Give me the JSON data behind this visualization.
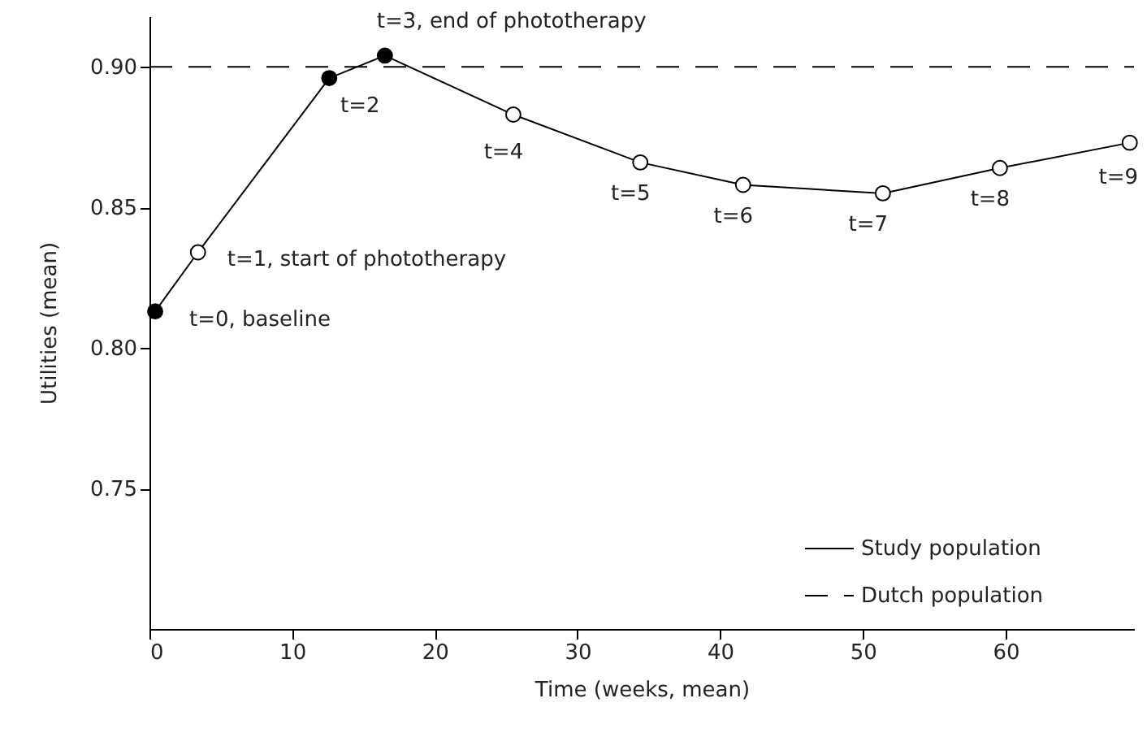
{
  "chart_data": {
    "type": "line",
    "xlabel": "Time (weeks, mean)",
    "ylabel": "Utilities (mean)",
    "xlim": [
      0,
      69
    ],
    "xticks": [
      0,
      10,
      20,
      30,
      40,
      50,
      60
    ],
    "ylim": [
      0.7,
      0.918
    ],
    "yticks": [
      {
        "value": 0.75,
        "label": "0.75"
      },
      {
        "value": 0.8,
        "label": "0.80"
      },
      {
        "value": 0.85,
        "label": "0.85"
      },
      {
        "value": 0.9,
        "label": "0.90"
      }
    ],
    "grid": false,
    "legend": "bottom right",
    "series": [
      {
        "name": "Study population",
        "color": "#000000",
        "marker": "circle",
        "line_style": "solid",
        "x": [
          0.4,
          3.4,
          12.6,
          16.5,
          25.5,
          34.4,
          41.6,
          51.4,
          59.6,
          68.7
        ],
        "values": [
          0.813,
          0.834,
          0.896,
          0.904,
          0.883,
          0.866,
          0.858,
          0.855,
          0.864,
          0.873
        ],
        "colors": [
          "#000000",
          "#ffffff",
          "#000000",
          "#000000",
          "#ffffff",
          "#ffffff",
          "#ffffff",
          "#ffffff",
          "#ffffff",
          "#ffffff"
        ]
      },
      {
        "name": "Dutch population",
        "color": "#000000",
        "marker": "none",
        "line_style": "dashed",
        "x": [
          0,
          69
        ],
        "values": [
          0.9,
          0.9
        ]
      }
    ],
    "annotations": [
      {
        "text": "t=0, baseline",
        "x": 0.4,
        "y": 0.813
      },
      {
        "text": "t=1, start of phototherapy",
        "x": 3.4,
        "y": 0.834
      },
      {
        "text": "t=2",
        "x": 12.6,
        "y": 0.896
      },
      {
        "text": "t=3, end of phototherapy",
        "x": 16.5,
        "y": 0.904
      },
      {
        "text": "t=4",
        "x": 25.5,
        "y": 0.883
      },
      {
        "text": "t=5",
        "x": 34.4,
        "y": 0.866
      },
      {
        "text": "t=6",
        "x": 41.6,
        "y": 0.858
      },
      {
        "text": "t=7",
        "x": 51.4,
        "y": 0.855
      },
      {
        "text": "t=8",
        "x": 59.6,
        "y": 0.864
      },
      {
        "text": "t=9",
        "x": 68.7,
        "y": 0.873
      }
    ]
  }
}
